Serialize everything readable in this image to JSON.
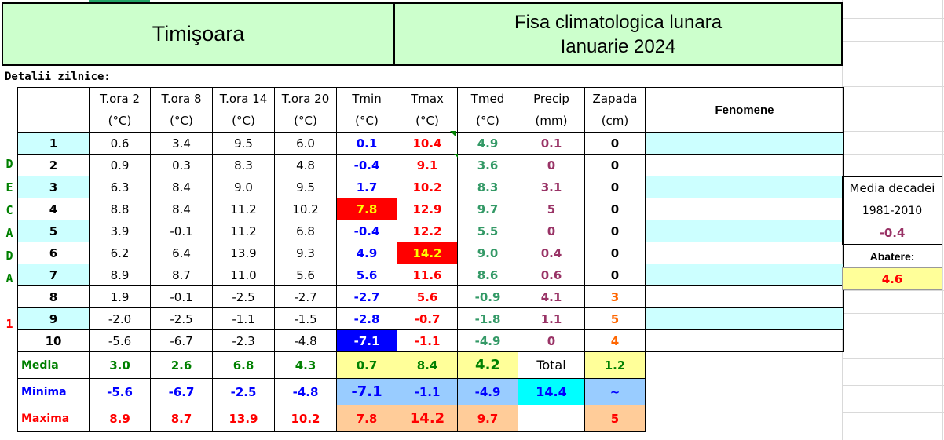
{
  "header": {
    "city": "Timişoara",
    "sheet_title_line1": "Fisa climatologica lunara",
    "sheet_title_line2": "Ianuarie 2024"
  },
  "section_label": "Detalii zilnice:",
  "columns": [
    {
      "name": "T.ora 2",
      "unit": "(°C)"
    },
    {
      "name": "T.ora 8",
      "unit": "(°C)"
    },
    {
      "name": "T.ora 14",
      "unit": "(°C)"
    },
    {
      "name": "T.ora 20",
      "unit": "(°C)"
    },
    {
      "name": "Tmin",
      "unit": "(°C)"
    },
    {
      "name": "Tmax",
      "unit": "(°C)"
    },
    {
      "name": "Tmed",
      "unit": "(°C)"
    },
    {
      "name": "Precip",
      "unit": "(mm)"
    },
    {
      "name": "Zapada",
      "unit": "(cm)"
    }
  ],
  "fenomene_header": "Fenomene",
  "decade_letters": [
    "D",
    "E",
    "C",
    "A",
    "D",
    "A",
    "",
    "",
    "1"
  ],
  "rows": [
    {
      "day": "1",
      "t2": "0.6",
      "t8": "3.4",
      "t14": "9.5",
      "t20": "6.0",
      "tmin": "0.1",
      "tmax": "10.4",
      "tmed": "4.9",
      "precip": "0.1",
      "zapada": "0"
    },
    {
      "day": "2",
      "t2": "0.9",
      "t8": "0.3",
      "t14": "8.3",
      "t20": "4.8",
      "tmin": "-0.4",
      "tmax": "9.1",
      "tmed": "3.6",
      "precip": "0",
      "zapada": "0"
    },
    {
      "day": "3",
      "t2": "6.3",
      "t8": "8.4",
      "t14": "9.0",
      "t20": "9.5",
      "tmin": "1.7",
      "tmax": "10.2",
      "tmed": "8.3",
      "precip": "3.1",
      "zapada": "0"
    },
    {
      "day": "4",
      "t2": "8.8",
      "t8": "8.4",
      "t14": "11.2",
      "t20": "10.2",
      "tmin": "7.8",
      "tmax": "12.9",
      "tmed": "9.7",
      "precip": "5",
      "zapada": "0"
    },
    {
      "day": "5",
      "t2": "3.9",
      "t8": "-0.1",
      "t14": "11.2",
      "t20": "6.8",
      "tmin": "-0.4",
      "tmax": "12.2",
      "tmed": "5.5",
      "precip": "0",
      "zapada": "0"
    },
    {
      "day": "6",
      "t2": "6.2",
      "t8": "6.4",
      "t14": "13.9",
      "t20": "9.3",
      "tmin": "4.9",
      "tmax": "14.2",
      "tmed": "9.0",
      "precip": "0.4",
      "zapada": "0"
    },
    {
      "day": "7",
      "t2": "8.9",
      "t8": "8.7",
      "t14": "11.0",
      "t20": "5.6",
      "tmin": "5.6",
      "tmax": "11.6",
      "tmed": "8.6",
      "precip": "0.6",
      "zapada": "0"
    },
    {
      "day": "8",
      "t2": "1.9",
      "t8": "-0.1",
      "t14": "-2.5",
      "t20": "-2.7",
      "tmin": "-2.7",
      "tmax": "5.6",
      "tmed": "-0.9",
      "precip": "4.1",
      "zapada": "3"
    },
    {
      "day": "9",
      "t2": "-2.0",
      "t8": "-2.5",
      "t14": "-1.1",
      "t20": "-1.5",
      "tmin": "-2.8",
      "tmax": "-0.7",
      "tmed": "-1.8",
      "precip": "1.1",
      "zapada": "5"
    },
    {
      "day": "10",
      "t2": "-5.6",
      "t8": "-6.7",
      "t14": "-2.3",
      "t20": "-4.8",
      "tmin": "-7.1",
      "tmax": "-1.1",
      "tmed": "-4.9",
      "precip": "0",
      "zapada": "4"
    }
  ],
  "summary": {
    "media": {
      "label": "Media",
      "t2": "3.0",
      "t8": "2.6",
      "t14": "6.8",
      "t20": "4.3",
      "tmin": "0.7",
      "tmax": "8.4",
      "tmed": "4.2",
      "precip_label": "Total",
      "zapada": "1.2"
    },
    "minima": {
      "label": "Minima",
      "t2": "-5.6",
      "t8": "-6.7",
      "t14": "-2.5",
      "t20": "-4.8",
      "tmin": "-7.1",
      "tmax": "-1.1",
      "tmed": "-4.9",
      "precip": "14.4",
      "zapada": "~"
    },
    "maxima": {
      "label": "Maxima",
      "t2": "8.9",
      "t8": "8.7",
      "t14": "13.9",
      "t20": "10.2",
      "tmin": "7.8",
      "tmax": "14.2",
      "tmed": "9.7",
      "precip": "",
      "zapada": "5"
    }
  },
  "decade_panel": {
    "title": "Media decadei",
    "period": "1981-2010",
    "value": "-0.4",
    "abatere_label": "Abatere:",
    "abatere_value": "4.6"
  },
  "colors": {
    "header_fill": "#ccffcc",
    "row_fill": "#ccffff",
    "tmin_color": "#0000ff",
    "tmax_color": "#ff0000",
    "tmed_color": "#339966",
    "precip_color": "#993366",
    "snow_color": "#ff6600"
  }
}
